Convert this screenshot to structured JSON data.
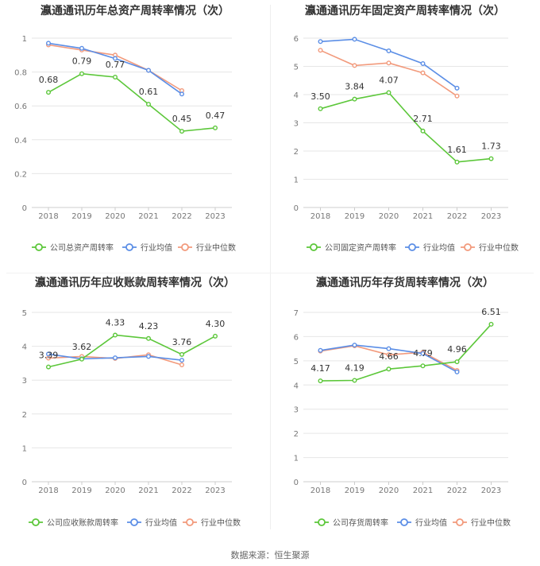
{
  "colors": {
    "company": "#5cc73a",
    "avg": "#5b8ee6",
    "median": "#f29a7c",
    "grid": "#e6e6e6",
    "axis": "#cccccc",
    "text": "#777777",
    "title": "#333333"
  },
  "legend": {
    "company_marker": "circle-marker-icon",
    "avg_marker": "circle-marker-icon",
    "median_marker": "circle-marker-icon"
  },
  "source": "数据来源：恒生聚源",
  "chart_data": [
    {
      "type": "line",
      "title": "瀛通通讯历年总资产周转率情况（次）",
      "categories": [
        "2018",
        "2019",
        "2020",
        "2021",
        "2022",
        "2023"
      ],
      "yticks": [
        "0",
        "0.2",
        "0.4",
        "0.6",
        "0.8",
        "1"
      ],
      "ylim": [
        0,
        1
      ],
      "grid": true,
      "legend_position": "bottom",
      "series": [
        {
          "name": "公司总资产周转率",
          "values": [
            0.68,
            0.79,
            0.77,
            0.61,
            0.45,
            0.47
          ],
          "labels": [
            "0.68",
            "0.79",
            "0.77",
            "0.61",
            "0.45",
            "0.47"
          ]
        },
        {
          "name": "行业均值",
          "values": [
            0.97,
            0.94,
            0.88,
            0.81,
            0.67,
            null
          ]
        },
        {
          "name": "行业中位数",
          "values": [
            0.96,
            0.93,
            0.9,
            0.81,
            0.69,
            null
          ]
        }
      ]
    },
    {
      "type": "line",
      "title": "瀛通通讯历年固定资产周转率情况（次）",
      "categories": [
        "2018",
        "2019",
        "2020",
        "2021",
        "2022",
        "2023"
      ],
      "yticks": [
        "0",
        "1",
        "2",
        "3",
        "4",
        "5",
        "6"
      ],
      "ylim": [
        0,
        6
      ],
      "grid": true,
      "legend_position": "bottom",
      "series": [
        {
          "name": "公司固定资产周转率",
          "values": [
            3.5,
            3.84,
            4.07,
            2.71,
            1.61,
            1.73
          ],
          "labels": [
            "3.50",
            "3.84",
            "4.07",
            "2.71",
            "1.61",
            "1.73"
          ]
        },
        {
          "name": "行业均值",
          "values": [
            5.88,
            5.96,
            5.55,
            5.1,
            4.23,
            null
          ]
        },
        {
          "name": "行业中位数",
          "values": [
            5.57,
            5.03,
            5.12,
            4.77,
            3.95,
            null
          ]
        }
      ]
    },
    {
      "type": "line",
      "title": "瀛通通讯历年应收账款周转率情况（次）",
      "categories": [
        "2018",
        "2019",
        "2020",
        "2021",
        "2022",
        "2023"
      ],
      "yticks": [
        "0",
        "1",
        "2",
        "3",
        "4",
        "5"
      ],
      "ylim": [
        0,
        5
      ],
      "grid": true,
      "legend_position": "bottom",
      "series": [
        {
          "name": "公司应收账款周转率",
          "values": [
            3.39,
            3.62,
            4.33,
            4.23,
            3.76,
            4.3
          ],
          "labels": [
            "3.39",
            "3.62",
            "4.33",
            "4.23",
            "3.76",
            "4.30"
          ]
        },
        {
          "name": "行业均值",
          "values": [
            3.77,
            3.63,
            3.66,
            3.7,
            3.59,
            null
          ]
        },
        {
          "name": "行业中位数",
          "values": [
            3.65,
            3.7,
            3.64,
            3.75,
            3.45,
            null
          ]
        }
      ]
    },
    {
      "type": "line",
      "title": "瀛通通讯历年存货周转率情况（次）",
      "categories": [
        "2018",
        "2019",
        "2020",
        "2021",
        "2022",
        "2023"
      ],
      "yticks": [
        "0",
        "1",
        "2",
        "3",
        "4",
        "5",
        "6",
        "7"
      ],
      "ylim": [
        0,
        7
      ],
      "grid": true,
      "legend_position": "bottom",
      "series": [
        {
          "name": "公司存货周转率",
          "values": [
            4.17,
            4.19,
            4.66,
            4.79,
            4.96,
            6.51
          ],
          "labels": [
            "4.17",
            "4.19",
            "4.66",
            "4.79",
            "4.96",
            "6.51"
          ]
        },
        {
          "name": "行业均值",
          "values": [
            5.43,
            5.65,
            5.5,
            5.3,
            4.54,
            null
          ]
        },
        {
          "name": "行业中位数",
          "values": [
            5.4,
            5.62,
            5.25,
            5.35,
            4.6,
            null
          ]
        }
      ]
    }
  ]
}
